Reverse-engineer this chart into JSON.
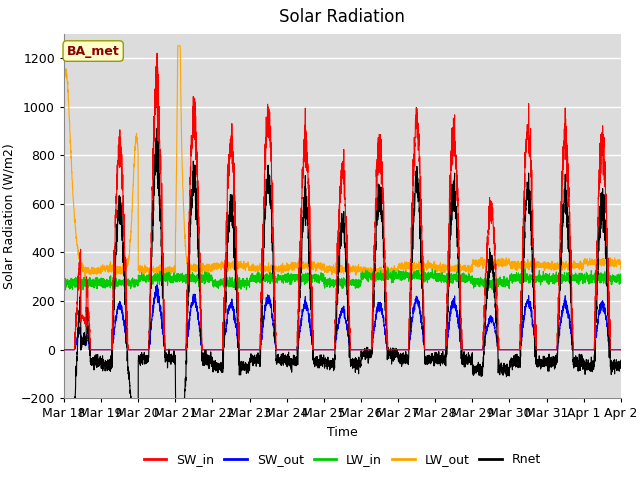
{
  "title": "Solar Radiation",
  "xlabel": "Time",
  "ylabel": "Solar Radiation (W/m2)",
  "ylim": [
    -200,
    1300
  ],
  "yticks": [
    -200,
    0,
    200,
    400,
    600,
    800,
    1000,
    1200
  ],
  "annotation": "BA_met",
  "annotation_color": "#8B0000",
  "annotation_bg": "#FFFFCC",
  "colors": {
    "SW_in": "#FF0000",
    "SW_out": "#0000FF",
    "LW_in": "#00CC00",
    "LW_out": "#FFA500",
    "Rnet": "#000000"
  },
  "legend_entries": [
    "SW_in",
    "SW_out",
    "LW_in",
    "LW_out",
    "Rnet"
  ],
  "bg_color": "#DCDCDC",
  "grid_color": "#FFFFFF",
  "n_days": 15,
  "pts_per_day": 288,
  "day_labels": [
    "Mar 18",
    "Mar 19",
    "Mar 20",
    "Mar 21",
    "Mar 22",
    "Mar 23",
    "Mar 24",
    "Mar 25",
    "Mar 26",
    "Mar 27",
    "Mar 28",
    "Mar 29",
    "Mar 30",
    "Mar 31",
    "Apr 1",
    "Apr 2"
  ]
}
